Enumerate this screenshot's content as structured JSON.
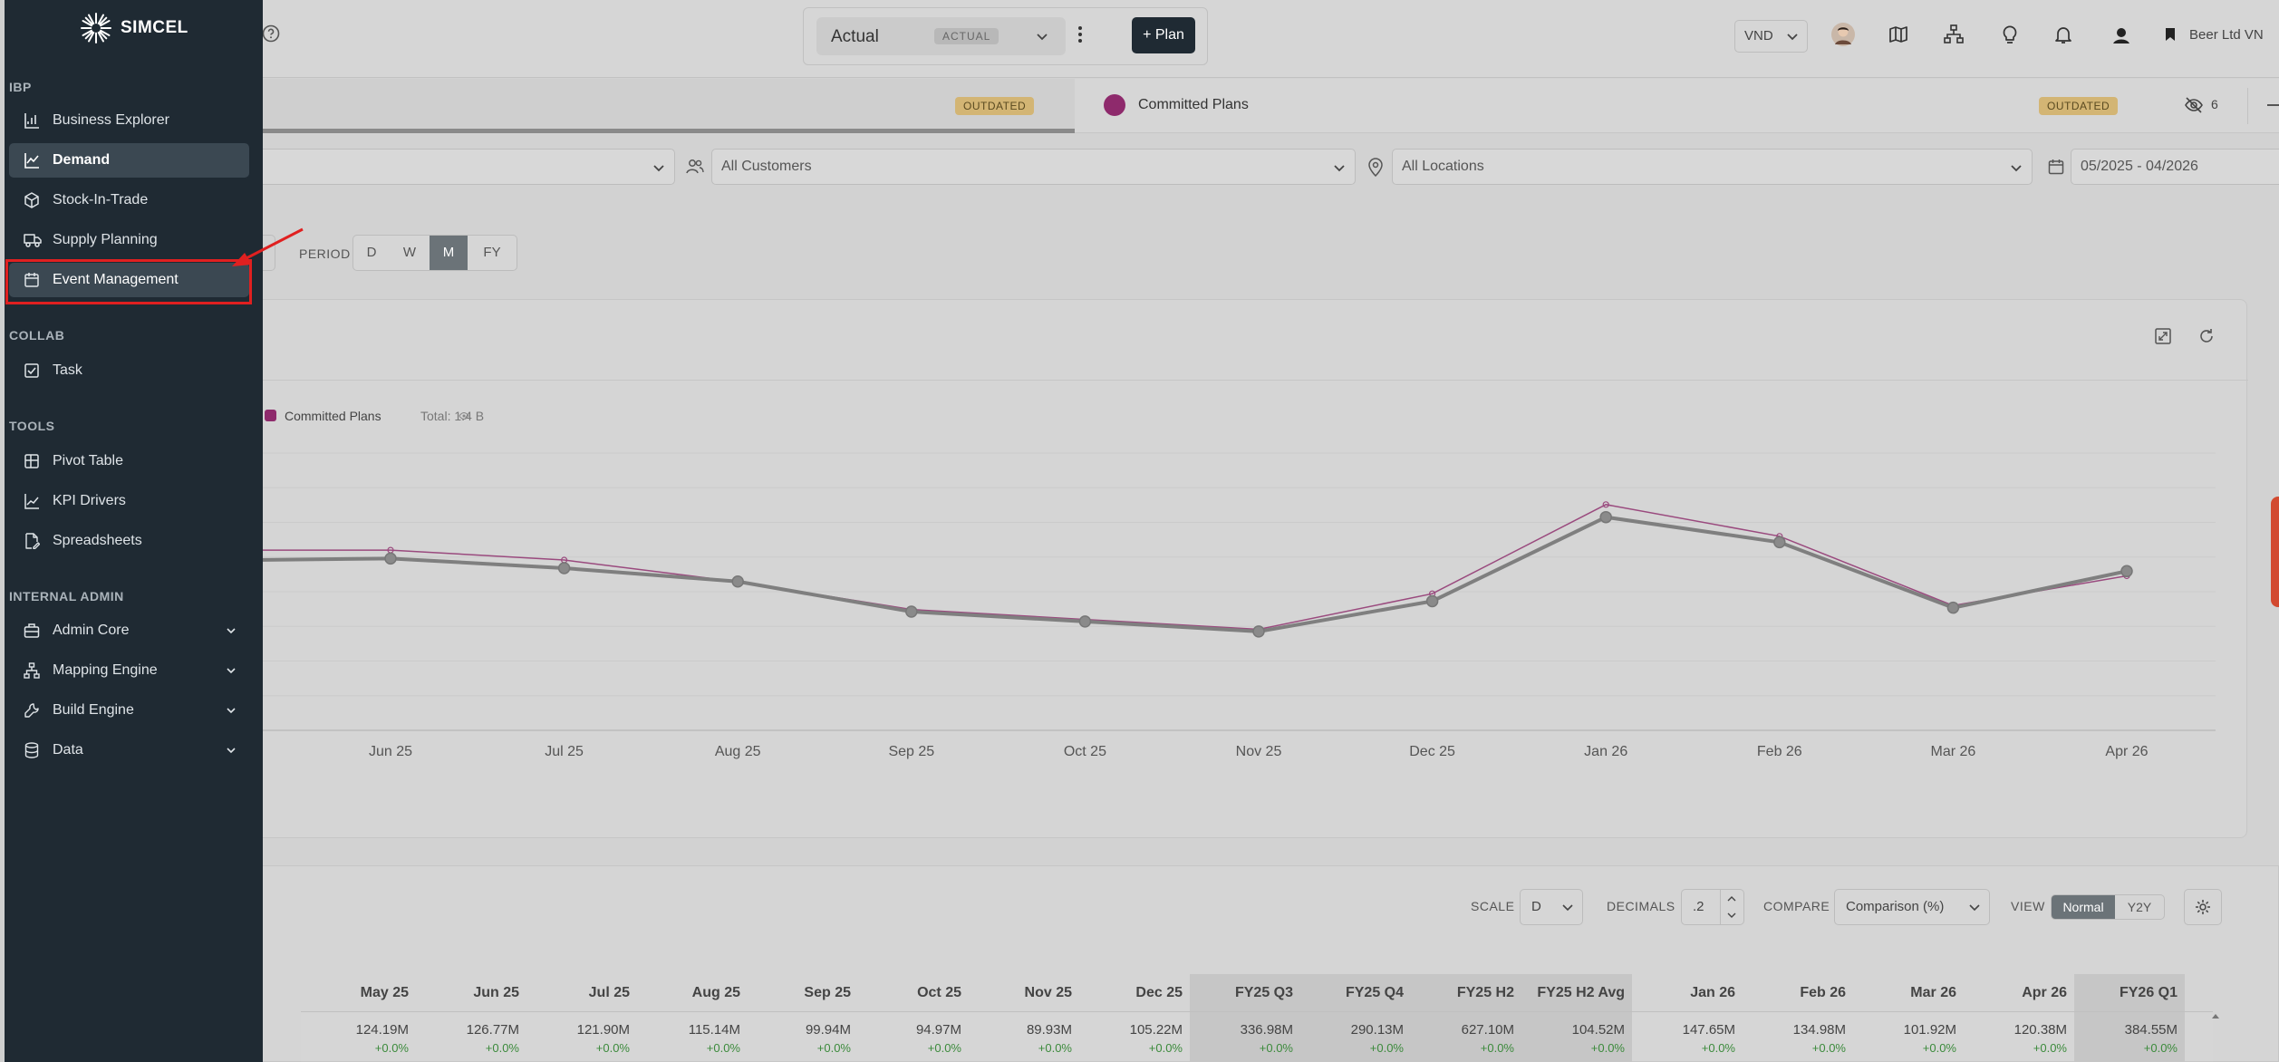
{
  "header": {
    "scenario_name": "Actual",
    "scenario_badge": "ACTUAL",
    "plan_button": "+ Plan",
    "currency": "VND",
    "company": "Beer Ltd VN"
  },
  "tabs": [
    {
      "label": "",
      "badge": "OUTDATED"
    },
    {
      "label": "Committed Plans",
      "badge": "OUTDATED",
      "color": "#8e2a6c"
    }
  ],
  "hidden_count": "6",
  "filters": {
    "customers": "All Customers",
    "locations": "All Locations",
    "date_range": "05/2025 - 04/2026"
  },
  "period": {
    "label": "PERIOD",
    "options": [
      "D",
      "W",
      "M",
      "FY"
    ],
    "selected": "M"
  },
  "legend": {
    "name": "Committed Plans",
    "total": "Total: 1.4 B"
  },
  "chart_data": {
    "type": "line",
    "x": [
      "Jun 25",
      "Jul 25",
      "Aug 25",
      "Sep 25",
      "Oct 25",
      "Nov 25",
      "Dec 25",
      "Jan 26",
      "Feb 26",
      "Mar 26",
      "Apr 26"
    ],
    "series": [
      {
        "name": "Committed Plans",
        "color": "#9a4a7e",
        "values": [
          131,
          126,
          115,
          101,
          96,
          91,
          109,
          154,
          138,
          103,
          118
        ]
      },
      {
        "name": "",
        "color": "#7f7f7f",
        "values": [
          126.77,
          121.9,
          115.14,
          99.94,
          94.97,
          89.93,
          105.22,
          147.65,
          134.98,
          101.92,
          120.38
        ]
      }
    ]
  },
  "table": {
    "scale_label": "SCALE",
    "scale_value": "D",
    "decimals_label": "DECIMALS",
    "decimals_value": ".2",
    "compare_label": "COMPARE",
    "compare_value": "Comparison (%)",
    "view_label": "VIEW",
    "view_options": [
      "Normal",
      "Y2Y"
    ],
    "columns": [
      {
        "label": "May 25",
        "value": "124.19M",
        "pct": "+0.0%"
      },
      {
        "label": "Jun 25",
        "value": "126.77M",
        "pct": "+0.0%"
      },
      {
        "label": "Jul 25",
        "value": "121.90M",
        "pct": "+0.0%"
      },
      {
        "label": "Aug 25",
        "value": "115.14M",
        "pct": "+0.0%"
      },
      {
        "label": "Sep 25",
        "value": "99.94M",
        "pct": "+0.0%"
      },
      {
        "label": "Oct 25",
        "value": "94.97M",
        "pct": "+0.0%"
      },
      {
        "label": "Nov 25",
        "value": "89.93M",
        "pct": "+0.0%"
      },
      {
        "label": "Dec 25",
        "value": "105.22M",
        "pct": "+0.0%"
      },
      {
        "label": "FY25 Q3",
        "value": "336.98M",
        "pct": "+0.0%"
      },
      {
        "label": "FY25 Q4",
        "value": "290.13M",
        "pct": "+0.0%"
      },
      {
        "label": "FY25 H2",
        "value": "627.10M",
        "pct": "+0.0%"
      },
      {
        "label": "FY25 H2 Avg",
        "value": "104.52M",
        "pct": "+0.0%"
      },
      {
        "label": "Jan 26",
        "value": "147.65M",
        "pct": "+0.0%"
      },
      {
        "label": "Feb 26",
        "value": "134.98M",
        "pct": "+0.0%"
      },
      {
        "label": "Mar 26",
        "value": "101.92M",
        "pct": "+0.0%"
      },
      {
        "label": "Apr 26",
        "value": "120.38M",
        "pct": "+0.0%"
      },
      {
        "label": "FY26 Q1",
        "value": "384.55M",
        "pct": "+0.0%"
      }
    ]
  },
  "sidebar": {
    "brand": "SIMCEL",
    "sections": {
      "ibp": "IBP",
      "collab": "COLLAB",
      "tools": "TOOLS",
      "admin": "INTERNAL ADMIN"
    },
    "items": {
      "business_explorer": "Business Explorer",
      "demand": "Demand",
      "stock_in_trade": "Stock-In-Trade",
      "supply_planning": "Supply Planning",
      "event_management": "Event Management",
      "task": "Task",
      "pivot_table": "Pivot Table",
      "kpi_drivers": "KPI Drivers",
      "spreadsheets": "Spreadsheets",
      "admin_core": "Admin Core",
      "mapping_engine": "Mapping Engine",
      "build_engine": "Build Engine",
      "data": "Data"
    }
  }
}
